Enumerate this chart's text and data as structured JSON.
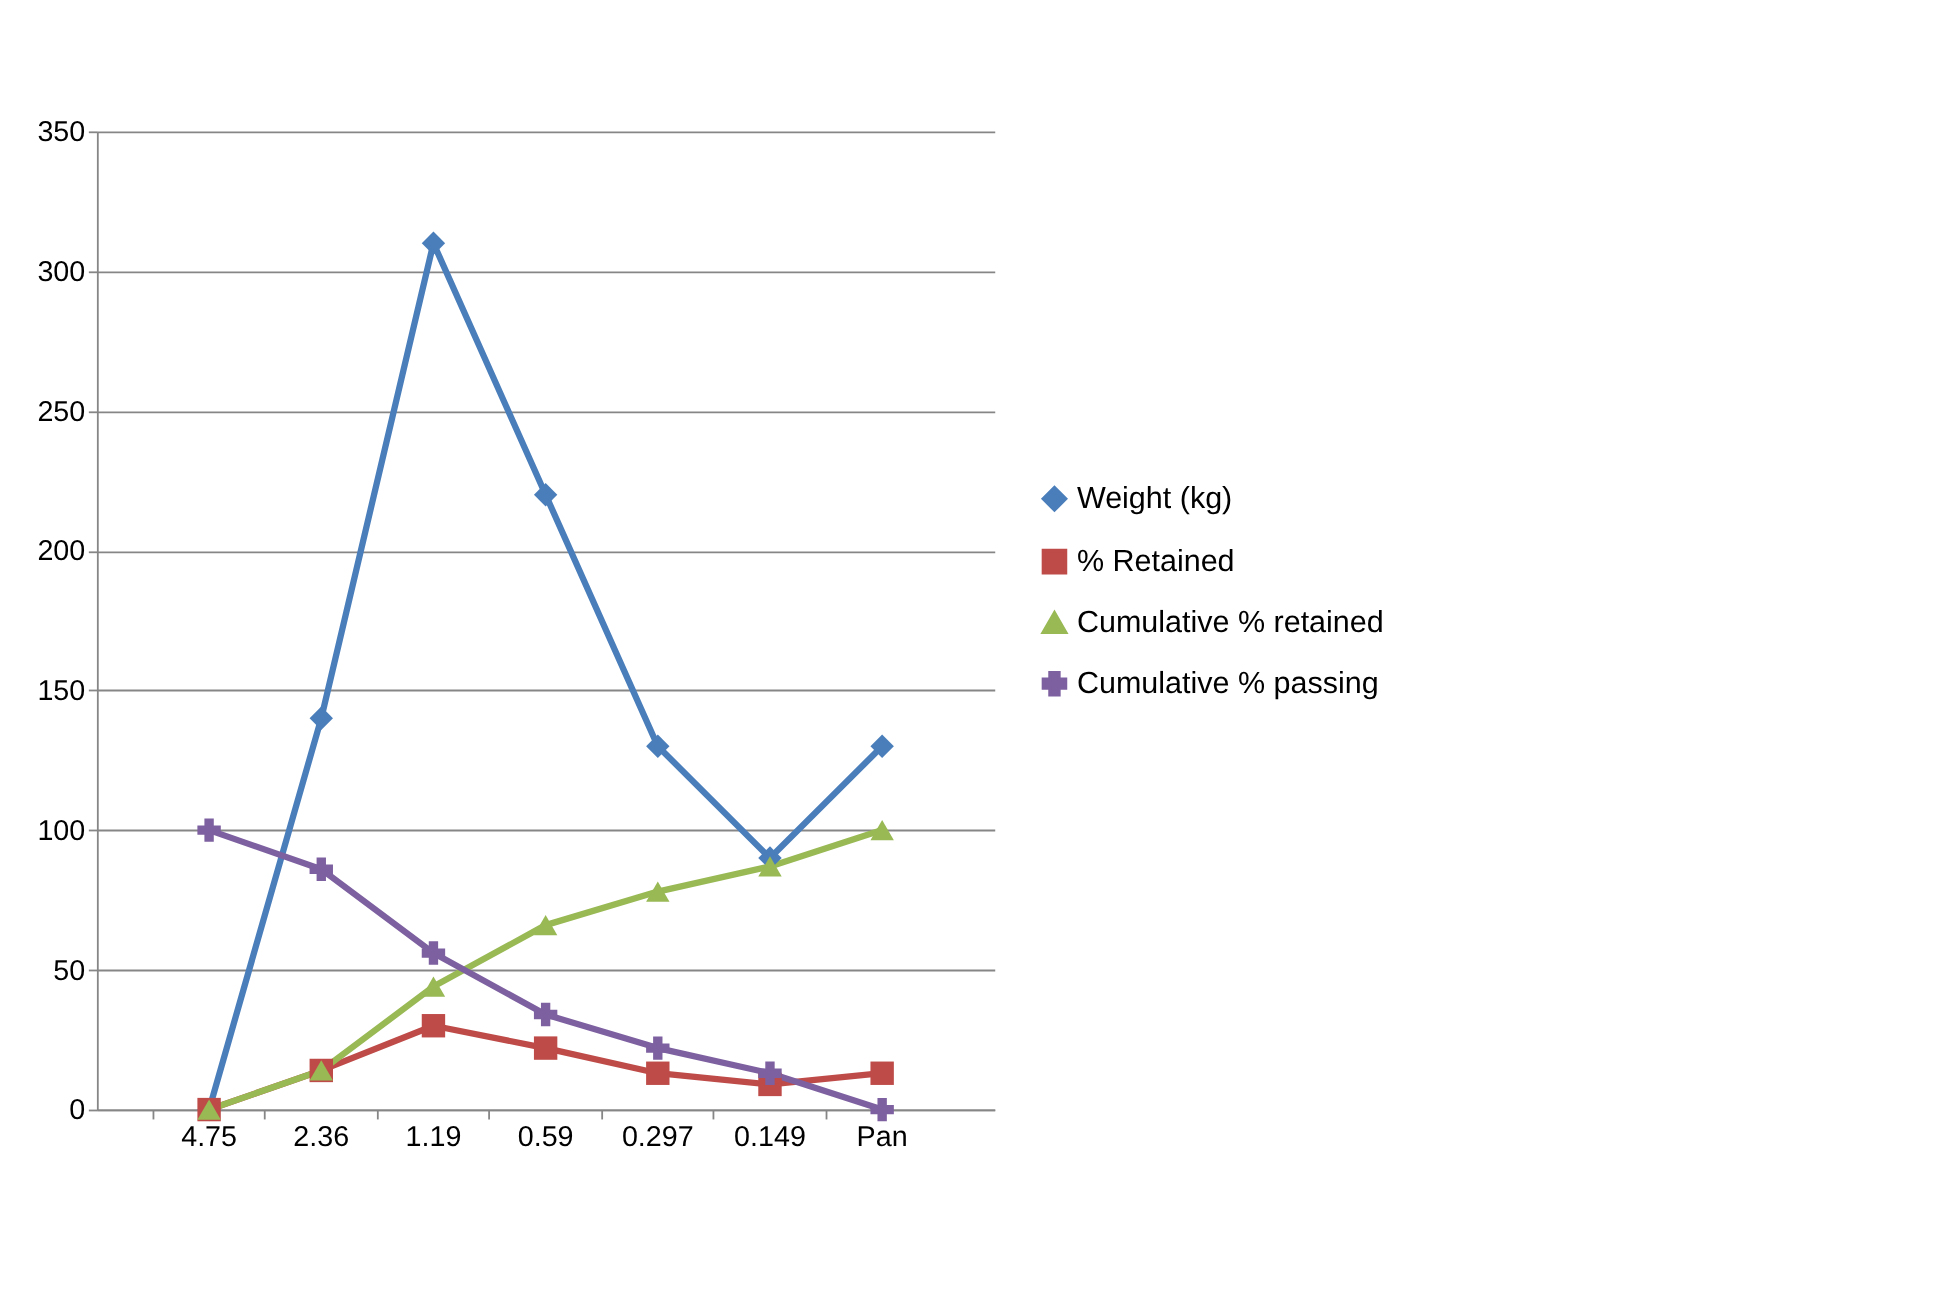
{
  "chart_data": {
    "type": "line",
    "categories": [
      "4.75",
      "2.36",
      "1.19",
      "0.59",
      "0.297",
      "0.149",
      "Pan"
    ],
    "series": [
      {
        "name": "Weight (kg)",
        "color": "#4a7ebb",
        "marker": "diamond",
        "values": [
          0,
          140,
          310,
          220,
          130,
          90,
          130
        ]
      },
      {
        "name": "% Retained",
        "color": "#be4b48",
        "marker": "square",
        "values": [
          0,
          14,
          30,
          22,
          13,
          9,
          13
        ]
      },
      {
        "name": "Cumulative % retained",
        "color": "#98b954",
        "marker": "triangle",
        "values": [
          0,
          14,
          44,
          66,
          78,
          87,
          100
        ]
      },
      {
        "name": "Cumulative % passing",
        "color": "#7d60a0",
        "marker": "cross",
        "values": [
          100,
          86,
          56,
          34,
          22,
          13,
          0
        ]
      }
    ],
    "ylim": [
      0,
      350
    ],
    "yticks": [
      0,
      50,
      100,
      150,
      200,
      250,
      300,
      350
    ],
    "grid": "y",
    "legend": "right",
    "line_style": "solid"
  }
}
